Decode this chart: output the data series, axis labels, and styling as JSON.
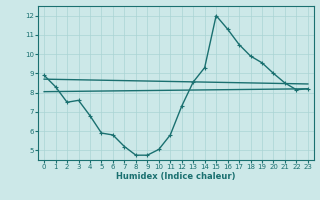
{
  "title": "",
  "xlabel": "Humidex (Indice chaleur)",
  "xlim": [
    -0.5,
    23.5
  ],
  "ylim": [
    4.5,
    12.5
  ],
  "xticks": [
    0,
    1,
    2,
    3,
    4,
    5,
    6,
    7,
    8,
    9,
    10,
    11,
    12,
    13,
    14,
    15,
    16,
    17,
    18,
    19,
    20,
    21,
    22,
    23
  ],
  "yticks": [
    5,
    6,
    7,
    8,
    9,
    10,
    11,
    12
  ],
  "bg_color": "#cce8e8",
  "line_color": "#1a7070",
  "grid_color": "#aad4d4",
  "line1_x": [
    0,
    1,
    2,
    3,
    4,
    5,
    6,
    7,
    8,
    9,
    10,
    11,
    12,
    13,
    14,
    15,
    16,
    17,
    18,
    19,
    20,
    21,
    22,
    23
  ],
  "line1_y": [
    8.9,
    8.3,
    7.5,
    7.6,
    6.8,
    5.9,
    5.8,
    5.2,
    4.75,
    4.75,
    5.05,
    5.8,
    7.3,
    8.55,
    9.3,
    12.0,
    11.3,
    10.5,
    9.9,
    9.55,
    9.0,
    8.5,
    8.15,
    8.2
  ],
  "line2_x": [
    0,
    23
  ],
  "line2_y": [
    8.05,
    8.2
  ],
  "line3_x": [
    0,
    23
  ],
  "line3_y": [
    8.7,
    8.45
  ],
  "linewidth": 1.0,
  "marker": "+"
}
